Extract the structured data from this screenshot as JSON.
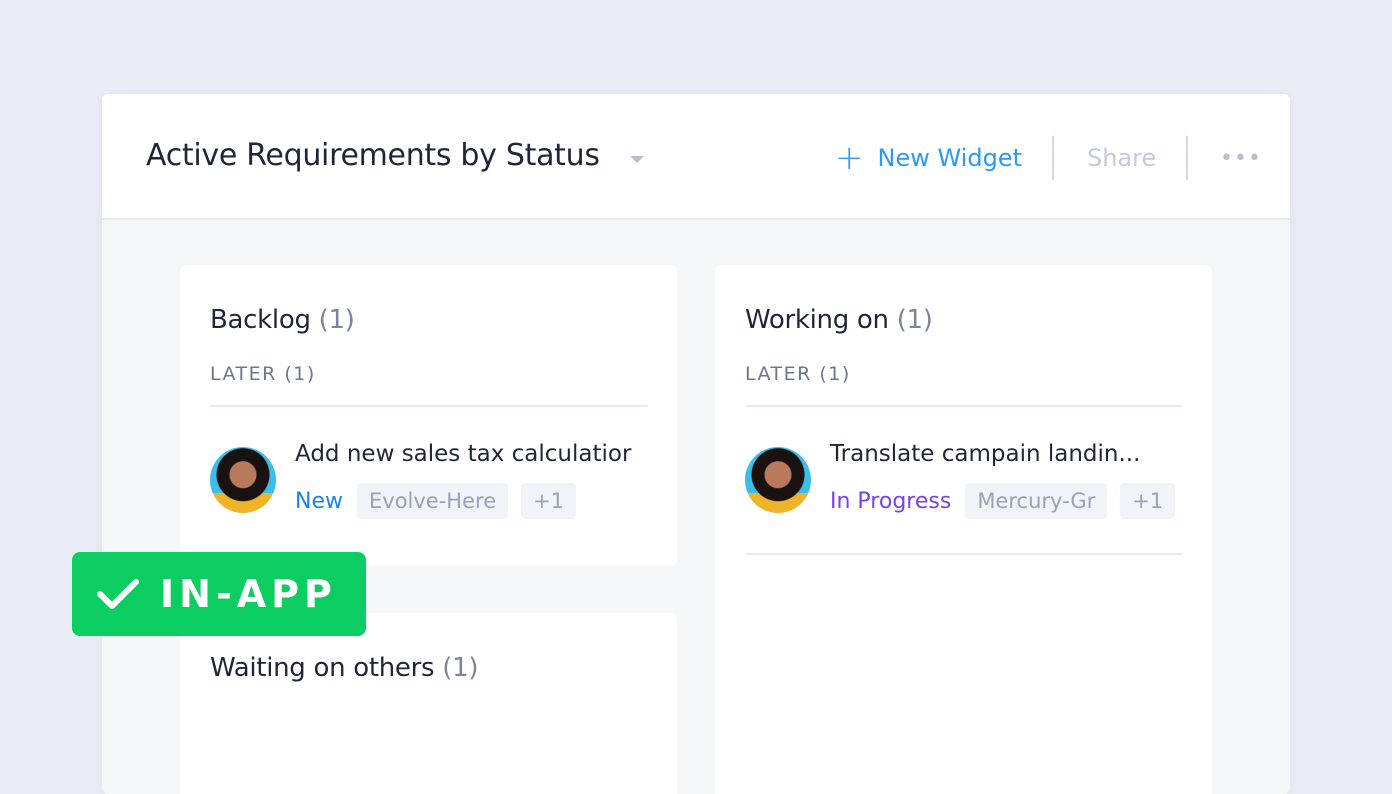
{
  "header": {
    "title": "Active Requirements by Status",
    "new_widget": "New Widget",
    "share": "Share",
    "more": "•••"
  },
  "columns": [
    {
      "title": "Backlog",
      "count": "(1)",
      "group": "LATER (1)",
      "item": {
        "title": "Add new sales tax calculatior",
        "status": "New",
        "status_color": "#1685f2",
        "tag": "Evolve-Here",
        "extra": "+1"
      }
    },
    {
      "title": "Working on",
      "count": "(1)",
      "group": "LATER (1)",
      "item": {
        "title": "Translate campain landin...",
        "status": "In Progress",
        "status_color": "#7b3ff2",
        "tag": "Mercury-Gr",
        "extra": "+1"
      }
    },
    {
      "title": "Waiting on others",
      "count": "(1)"
    }
  ],
  "badge": {
    "label": "IN-APP",
    "color": "#0ccd62"
  }
}
